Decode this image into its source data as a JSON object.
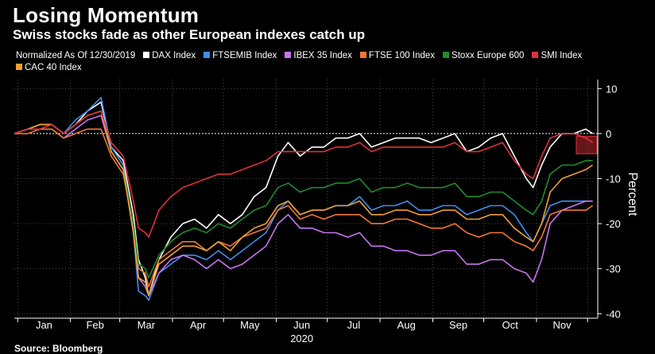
{
  "title": "Losing Momentum",
  "subtitle": "Swiss stocks fade as other European indexes catch up",
  "source": "Source: Bloomberg",
  "chart_data": {
    "type": "line",
    "legend_prefix": "Normalized As Of 12/30/2019",
    "ylabel": "Percent",
    "xlabel": "2020",
    "ylim": [
      -41,
      12
    ],
    "yticks": [
      10,
      0,
      -10,
      -20,
      -30,
      -40
    ],
    "x_months": [
      "Jan",
      "Feb",
      "Mar",
      "Apr",
      "May",
      "Jun",
      "Jul",
      "Aug",
      "Sep",
      "Oct",
      "Nov"
    ],
    "x": [
      "2019-12-30",
      "2020-01-07",
      "2020-01-14",
      "2020-01-21",
      "2020-01-28",
      "2020-02-04",
      "2020-02-11",
      "2020-02-19",
      "2020-02-25",
      "2020-03-03",
      "2020-03-09",
      "2020-03-12",
      "2020-03-16",
      "2020-03-18",
      "2020-03-24",
      "2020-03-31",
      "2020-04-07",
      "2020-04-14",
      "2020-04-21",
      "2020-04-28",
      "2020-05-05",
      "2020-05-12",
      "2020-05-19",
      "2020-05-26",
      "2020-06-02",
      "2020-06-08",
      "2020-06-15",
      "2020-06-22",
      "2020-06-29",
      "2020-07-06",
      "2020-07-13",
      "2020-07-20",
      "2020-07-27",
      "2020-08-03",
      "2020-08-10",
      "2020-08-17",
      "2020-08-24",
      "2020-08-31",
      "2020-09-07",
      "2020-09-14",
      "2020-09-21",
      "2020-09-28",
      "2020-10-05",
      "2020-10-12",
      "2020-10-19",
      "2020-10-26",
      "2020-10-30",
      "2020-11-04",
      "2020-11-09",
      "2020-11-16",
      "2020-11-23",
      "2020-11-30",
      "2020-12-04"
    ],
    "series": [
      {
        "name": "DAX Index",
        "color": "#ffffff",
        "values": [
          0,
          1,
          2,
          2,
          0,
          2,
          5,
          7,
          -3,
          -6,
          -18,
          -28,
          -32,
          -36,
          -28,
          -23,
          -20,
          -19,
          -21,
          -18,
          -20,
          -18,
          -14,
          -12,
          -5,
          -2,
          -5,
          -3,
          -3,
          -1,
          -1,
          0,
          -3,
          -2,
          -1,
          -1,
          -1,
          -2,
          -1,
          0,
          -4,
          -3,
          -1,
          0,
          -5,
          -10,
          -12,
          -7,
          -3,
          0,
          0,
          1,
          0
        ]
      },
      {
        "name": "FTSEMIB Index",
        "color": "#3d8ef0",
        "values": [
          0,
          1,
          2,
          2,
          0,
          3,
          5,
          8,
          -3,
          -7,
          -22,
          -35,
          -36,
          -37,
          -31,
          -29,
          -27,
          -27,
          -28,
          -26,
          -28,
          -26,
          -24,
          -22,
          -17,
          -15,
          -18,
          -17,
          -17,
          -16,
          -16,
          -14,
          -17,
          -16,
          -16,
          -15,
          -17,
          -17,
          -16,
          -16,
          -18,
          -17,
          -16,
          -16,
          -18,
          -22,
          -24,
          -20,
          -16,
          -15,
          -15,
          -15,
          -15
        ]
      },
      {
        "name": "IBEX 35 Index",
        "color": "#c874f0",
        "values": [
          0,
          1,
          1,
          1,
          -1,
          1,
          3,
          4,
          -4,
          -8,
          -22,
          -32,
          -34,
          -36,
          -31,
          -28,
          -27,
          -28,
          -30,
          -28,
          -30,
          -29,
          -27,
          -25,
          -20,
          -18,
          -21,
          -21,
          -22,
          -22,
          -23,
          -22,
          -25,
          -25,
          -26,
          -26,
          -27,
          -27,
          -26,
          -26,
          -29,
          -29,
          -28,
          -28,
          -30,
          -31,
          -33,
          -28,
          -20,
          -17,
          -16,
          -15,
          -15
        ]
      },
      {
        "name": "FTSE 100 Index",
        "color": "#f07830",
        "values": [
          0,
          0,
          1,
          1,
          -1,
          0,
          1,
          1,
          -5,
          -9,
          -20,
          -30,
          -31,
          -34,
          -28,
          -26,
          -24,
          -24,
          -26,
          -24,
          -25,
          -23,
          -22,
          -21,
          -17,
          -16,
          -19,
          -18,
          -19,
          -18,
          -18,
          -18,
          -20,
          -20,
          -19,
          -19,
          -20,
          -21,
          -21,
          -20,
          -22,
          -23,
          -22,
          -22,
          -24,
          -25,
          -26,
          -23,
          -18,
          -17,
          -17,
          -17,
          -16
        ]
      },
      {
        "name": "Stoxx Europe 600",
        "color": "#1e8c2c",
        "values": [
          0,
          1,
          2,
          2,
          0,
          2,
          4,
          5,
          -4,
          -8,
          -20,
          -29,
          -30,
          -32,
          -27,
          -24,
          -22,
          -21,
          -22,
          -20,
          -21,
          -19,
          -17,
          -16,
          -12,
          -11,
          -13,
          -12,
          -12,
          -11,
          -11,
          -10,
          -13,
          -12,
          -12,
          -11,
          -12,
          -12,
          -12,
          -11,
          -14,
          -14,
          -13,
          -13,
          -15,
          -17,
          -18,
          -15,
          -9,
          -7,
          -7,
          -6,
          -6
        ]
      },
      {
        "name": "SMI Index",
        "color": "#e0303c",
        "values": [
          0,
          1,
          1,
          2,
          0,
          2,
          4,
          5,
          -2,
          -5,
          -15,
          -21,
          -22,
          -23,
          -17,
          -14,
          -12,
          -11,
          -10,
          -9,
          -9,
          -8,
          -7,
          -6,
          -4,
          -4,
          -4,
          -4,
          -4,
          -3,
          -3,
          -2,
          -4,
          -3,
          -3,
          -3,
          -3,
          -3,
          -3,
          -2,
          -4,
          -4,
          -3,
          -2,
          -6,
          -9,
          -10,
          -5,
          -1,
          0,
          0,
          -1,
          -2
        ]
      },
      {
        "name": "CAC 40 Index",
        "color": "#f0a030",
        "values": [
          0,
          1,
          2,
          2,
          0,
          2,
          4,
          5,
          -4,
          -8,
          -22,
          -32,
          -33,
          -36,
          -29,
          -27,
          -25,
          -25,
          -26,
          -24,
          -26,
          -23,
          -21,
          -20,
          -16,
          -15,
          -18,
          -17,
          -17,
          -16,
          -16,
          -15,
          -18,
          -18,
          -17,
          -17,
          -18,
          -18,
          -17,
          -17,
          -19,
          -19,
          -18,
          -18,
          -21,
          -23,
          -24,
          -20,
          -13,
          -10,
          -9,
          -8,
          -7
        ]
      }
    ]
  }
}
